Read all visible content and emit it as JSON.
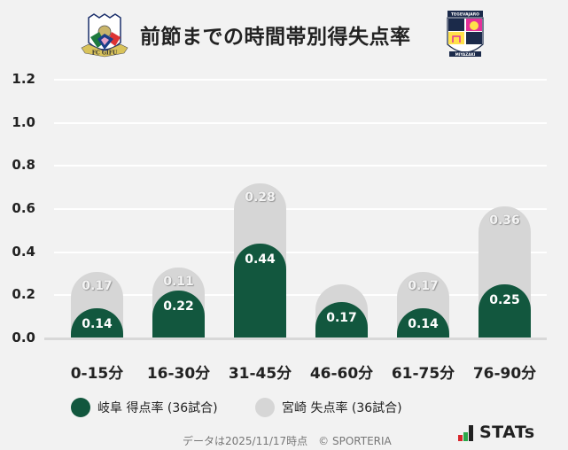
{
  "header": {
    "title": "前節までの時間帯別得失点率",
    "home_logo": "fc-gifu-emblem",
    "away_logo": "tegevajaro-miyazaki-emblem"
  },
  "colors": {
    "home": "#12573e",
    "away": "#d6d6d6",
    "background": "#f2f2f2"
  },
  "chart_data": {
    "type": "bar",
    "stacked": true,
    "title": "前節までの時間帯別得失点率",
    "categories": [
      "0-15分",
      "16-30分",
      "31-45分",
      "46-60分",
      "61-75分",
      "76-90分"
    ],
    "series": [
      {
        "name": "岐阜 得点率 (36試合)",
        "values": [
          0.14,
          0.22,
          0.44,
          0.17,
          0.14,
          0.25
        ],
        "labels": [
          "0.14",
          "0.22",
          "0.44",
          "0.17",
          "0.14",
          "0.25"
        ]
      },
      {
        "name": "宮崎 失点率 (36試合)",
        "values": [
          0.17,
          0.11,
          0.28,
          0.08,
          0.17,
          0.36
        ],
        "labels": [
          "0.17",
          "0.11",
          "0.28",
          "",
          "0.17",
          "0.36"
        ]
      }
    ],
    "yticks": [
      "0.0",
      "0.2",
      "0.4",
      "0.6",
      "0.8",
      "1.0",
      "1.2"
    ],
    "ylim": [
      0,
      1.2
    ],
    "xlabel": "",
    "ylabel": "",
    "grid": true,
    "legend_position": "bottom-left"
  },
  "legend": [
    {
      "label": "岐阜 得点率 (36試合)"
    },
    {
      "label": "宮崎 失点率 (36試合)"
    }
  ],
  "footer": {
    "note": "データは2025/11/17時点　© SPORTERIA",
    "brand": "STATs"
  }
}
